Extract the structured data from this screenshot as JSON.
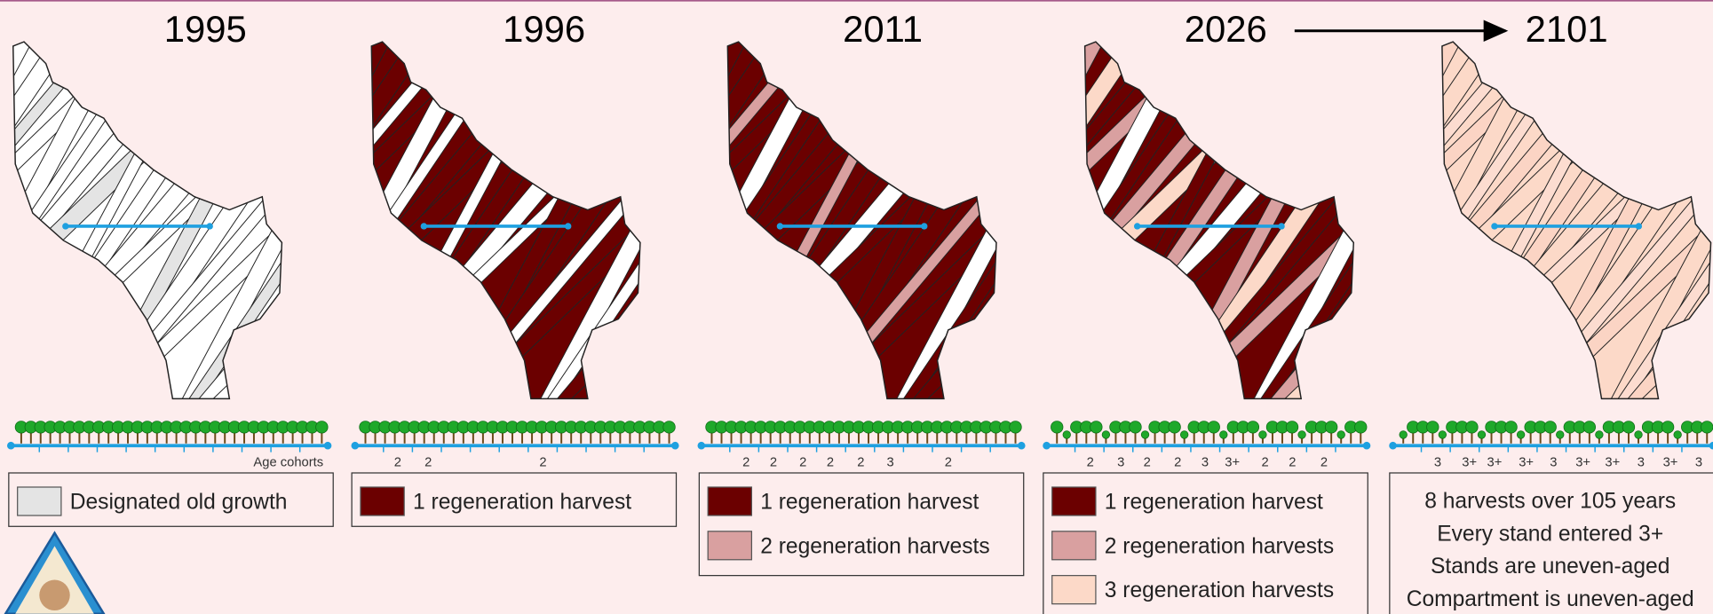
{
  "panels": [
    {
      "year": "1995",
      "cohorts_label": "Age cohorts",
      "legend": [
        {
          "label": "Designated old growth",
          "color": "#e4e4e4"
        }
      ]
    },
    {
      "year": "1996",
      "cohorts": [
        "2",
        "2",
        "2"
      ],
      "legend": [
        {
          "label": "1 regeneration harvest",
          "color": "#6b0000"
        }
      ]
    },
    {
      "year": "2011",
      "cohorts": [
        "2",
        "2",
        "2",
        "2",
        "2",
        "3",
        "2"
      ],
      "legend": [
        {
          "label": "1 regeneration harvest",
          "color": "#6b0000"
        },
        {
          "label": "2 regeneration harvests",
          "color": "#d9a0a0"
        }
      ]
    },
    {
      "year": "2026",
      "cohorts": [
        "2",
        "3",
        "2",
        "2",
        "3",
        "3+",
        "2",
        "2",
        "2"
      ],
      "legend": [
        {
          "label": "1 regeneration harvest",
          "color": "#6b0000"
        },
        {
          "label": "2 regeneration harvests",
          "color": "#d9a0a0"
        },
        {
          "label": "3 regeneration harvests",
          "color": "#fcd9c8"
        }
      ]
    },
    {
      "year": "2101",
      "cohorts": [
        "3",
        "3+",
        "3+",
        "3+",
        "3",
        "3+",
        "3+",
        "3",
        "3+",
        "3"
      ],
      "notes": [
        "8 harvests over 105 years",
        "Every stand entered 3+",
        "Stands are uneven-aged",
        "Compartment is uneven-aged"
      ]
    }
  ]
}
